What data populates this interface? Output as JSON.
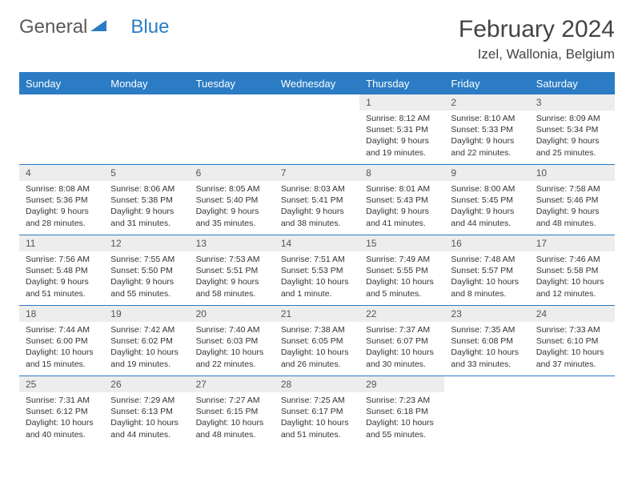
{
  "logo": {
    "part1": "General",
    "part2": "Blue"
  },
  "header": {
    "month_title": "February 2024",
    "location": "Izel, Wallonia, Belgium"
  },
  "colors": {
    "accent": "#2b7cc4",
    "daynum_bg": "#ededed",
    "text": "#333333"
  },
  "day_names": [
    "Sunday",
    "Monday",
    "Tuesday",
    "Wednesday",
    "Thursday",
    "Friday",
    "Saturday"
  ],
  "weeks": [
    [
      null,
      null,
      null,
      null,
      {
        "n": "1",
        "sr": "Sunrise: 8:12 AM",
        "ss": "Sunset: 5:31 PM",
        "d1": "Daylight: 9 hours",
        "d2": "and 19 minutes."
      },
      {
        "n": "2",
        "sr": "Sunrise: 8:10 AM",
        "ss": "Sunset: 5:33 PM",
        "d1": "Daylight: 9 hours",
        "d2": "and 22 minutes."
      },
      {
        "n": "3",
        "sr": "Sunrise: 8:09 AM",
        "ss": "Sunset: 5:34 PM",
        "d1": "Daylight: 9 hours",
        "d2": "and 25 minutes."
      }
    ],
    [
      {
        "n": "4",
        "sr": "Sunrise: 8:08 AM",
        "ss": "Sunset: 5:36 PM",
        "d1": "Daylight: 9 hours",
        "d2": "and 28 minutes."
      },
      {
        "n": "5",
        "sr": "Sunrise: 8:06 AM",
        "ss": "Sunset: 5:38 PM",
        "d1": "Daylight: 9 hours",
        "d2": "and 31 minutes."
      },
      {
        "n": "6",
        "sr": "Sunrise: 8:05 AM",
        "ss": "Sunset: 5:40 PM",
        "d1": "Daylight: 9 hours",
        "d2": "and 35 minutes."
      },
      {
        "n": "7",
        "sr": "Sunrise: 8:03 AM",
        "ss": "Sunset: 5:41 PM",
        "d1": "Daylight: 9 hours",
        "d2": "and 38 minutes."
      },
      {
        "n": "8",
        "sr": "Sunrise: 8:01 AM",
        "ss": "Sunset: 5:43 PM",
        "d1": "Daylight: 9 hours",
        "d2": "and 41 minutes."
      },
      {
        "n": "9",
        "sr": "Sunrise: 8:00 AM",
        "ss": "Sunset: 5:45 PM",
        "d1": "Daylight: 9 hours",
        "d2": "and 44 minutes."
      },
      {
        "n": "10",
        "sr": "Sunrise: 7:58 AM",
        "ss": "Sunset: 5:46 PM",
        "d1": "Daylight: 9 hours",
        "d2": "and 48 minutes."
      }
    ],
    [
      {
        "n": "11",
        "sr": "Sunrise: 7:56 AM",
        "ss": "Sunset: 5:48 PM",
        "d1": "Daylight: 9 hours",
        "d2": "and 51 minutes."
      },
      {
        "n": "12",
        "sr": "Sunrise: 7:55 AM",
        "ss": "Sunset: 5:50 PM",
        "d1": "Daylight: 9 hours",
        "d2": "and 55 minutes."
      },
      {
        "n": "13",
        "sr": "Sunrise: 7:53 AM",
        "ss": "Sunset: 5:51 PM",
        "d1": "Daylight: 9 hours",
        "d2": "and 58 minutes."
      },
      {
        "n": "14",
        "sr": "Sunrise: 7:51 AM",
        "ss": "Sunset: 5:53 PM",
        "d1": "Daylight: 10 hours",
        "d2": "and 1 minute."
      },
      {
        "n": "15",
        "sr": "Sunrise: 7:49 AM",
        "ss": "Sunset: 5:55 PM",
        "d1": "Daylight: 10 hours",
        "d2": "and 5 minutes."
      },
      {
        "n": "16",
        "sr": "Sunrise: 7:48 AM",
        "ss": "Sunset: 5:57 PM",
        "d1": "Daylight: 10 hours",
        "d2": "and 8 minutes."
      },
      {
        "n": "17",
        "sr": "Sunrise: 7:46 AM",
        "ss": "Sunset: 5:58 PM",
        "d1": "Daylight: 10 hours",
        "d2": "and 12 minutes."
      }
    ],
    [
      {
        "n": "18",
        "sr": "Sunrise: 7:44 AM",
        "ss": "Sunset: 6:00 PM",
        "d1": "Daylight: 10 hours",
        "d2": "and 15 minutes."
      },
      {
        "n": "19",
        "sr": "Sunrise: 7:42 AM",
        "ss": "Sunset: 6:02 PM",
        "d1": "Daylight: 10 hours",
        "d2": "and 19 minutes."
      },
      {
        "n": "20",
        "sr": "Sunrise: 7:40 AM",
        "ss": "Sunset: 6:03 PM",
        "d1": "Daylight: 10 hours",
        "d2": "and 22 minutes."
      },
      {
        "n": "21",
        "sr": "Sunrise: 7:38 AM",
        "ss": "Sunset: 6:05 PM",
        "d1": "Daylight: 10 hours",
        "d2": "and 26 minutes."
      },
      {
        "n": "22",
        "sr": "Sunrise: 7:37 AM",
        "ss": "Sunset: 6:07 PM",
        "d1": "Daylight: 10 hours",
        "d2": "and 30 minutes."
      },
      {
        "n": "23",
        "sr": "Sunrise: 7:35 AM",
        "ss": "Sunset: 6:08 PM",
        "d1": "Daylight: 10 hours",
        "d2": "and 33 minutes."
      },
      {
        "n": "24",
        "sr": "Sunrise: 7:33 AM",
        "ss": "Sunset: 6:10 PM",
        "d1": "Daylight: 10 hours",
        "d2": "and 37 minutes."
      }
    ],
    [
      {
        "n": "25",
        "sr": "Sunrise: 7:31 AM",
        "ss": "Sunset: 6:12 PM",
        "d1": "Daylight: 10 hours",
        "d2": "and 40 minutes."
      },
      {
        "n": "26",
        "sr": "Sunrise: 7:29 AM",
        "ss": "Sunset: 6:13 PM",
        "d1": "Daylight: 10 hours",
        "d2": "and 44 minutes."
      },
      {
        "n": "27",
        "sr": "Sunrise: 7:27 AM",
        "ss": "Sunset: 6:15 PM",
        "d1": "Daylight: 10 hours",
        "d2": "and 48 minutes."
      },
      {
        "n": "28",
        "sr": "Sunrise: 7:25 AM",
        "ss": "Sunset: 6:17 PM",
        "d1": "Daylight: 10 hours",
        "d2": "and 51 minutes."
      },
      {
        "n": "29",
        "sr": "Sunrise: 7:23 AM",
        "ss": "Sunset: 6:18 PM",
        "d1": "Daylight: 10 hours",
        "d2": "and 55 minutes."
      },
      null,
      null
    ]
  ]
}
